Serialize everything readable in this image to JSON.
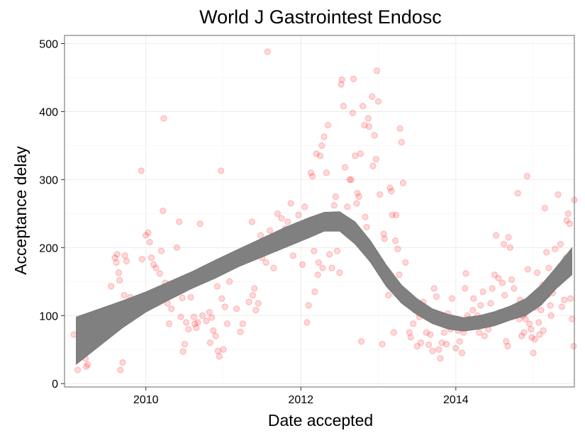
{
  "chart_data": {
    "type": "scatter",
    "title": "World J Gastrointest Endosc",
    "xlabel": "Date accepted",
    "ylabel": "Acceptance delay",
    "xlim": [
      2008.95,
      2015.53
    ],
    "ylim": [
      -5,
      512
    ],
    "x_ticks": [
      2010,
      2012,
      2014
    ],
    "x_tick_labels": [
      "2010",
      "2012",
      "2014"
    ],
    "y_ticks": [
      0,
      100,
      200,
      300,
      400,
      500
    ],
    "y_tick_labels": [
      "0",
      "100",
      "200",
      "300",
      "400",
      "500"
    ],
    "grid": true,
    "point_color": "#ff0000",
    "point_alpha": 0.15,
    "smooth_color": "#808080",
    "points": [
      [
        2009.07,
        72
      ],
      [
        2009.12,
        20
      ],
      [
        2009.15,
        58
      ],
      [
        2009.17,
        52
      ],
      [
        2009.2,
        80
      ],
      [
        2009.22,
        37
      ],
      [
        2009.23,
        25
      ],
      [
        2009.25,
        28
      ],
      [
        2009.55,
        143
      ],
      [
        2009.6,
        185
      ],
      [
        2009.62,
        178
      ],
      [
        2009.63,
        190
      ],
      [
        2009.65,
        163
      ],
      [
        2009.66,
        152
      ],
      [
        2009.66,
        108
      ],
      [
        2009.67,
        20
      ],
      [
        2009.68,
        90
      ],
      [
        2009.7,
        31
      ],
      [
        2009.72,
        130
      ],
      [
        2009.73,
        188
      ],
      [
        2009.75,
        180
      ],
      [
        2009.8,
        127
      ],
      [
        2009.94,
        313
      ],
      [
        2009.95,
        183
      ],
      [
        2010.0,
        218
      ],
      [
        2010.03,
        222
      ],
      [
        2010.05,
        208
      ],
      [
        2010.07,
        185
      ],
      [
        2010.1,
        175
      ],
      [
        2010.13,
        170
      ],
      [
        2010.18,
        162
      ],
      [
        2010.2,
        195
      ],
      [
        2010.22,
        254
      ],
      [
        2010.23,
        390
      ],
      [
        2010.25,
        148
      ],
      [
        2010.28,
        118
      ],
      [
        2010.3,
        88
      ],
      [
        2010.33,
        110
      ],
      [
        2010.4,
        200
      ],
      [
        2010.43,
        238
      ],
      [
        2010.45,
        98
      ],
      [
        2010.47,
        126
      ],
      [
        2010.48,
        47
      ],
      [
        2010.5,
        58
      ],
      [
        2010.52,
        90
      ],
      [
        2010.55,
        80
      ],
      [
        2010.58,
        127
      ],
      [
        2010.62,
        98
      ],
      [
        2010.63,
        88
      ],
      [
        2010.65,
        82
      ],
      [
        2010.67,
        90
      ],
      [
        2010.7,
        235
      ],
      [
        2010.73,
        100
      ],
      [
        2010.78,
        92
      ],
      [
        2010.82,
        105
      ],
      [
        2010.83,
        60
      ],
      [
        2010.85,
        97
      ],
      [
        2010.87,
        78
      ],
      [
        2010.9,
        70
      ],
      [
        2010.92,
        143
      ],
      [
        2010.93,
        48
      ],
      [
        2010.95,
        40
      ],
      [
        2010.97,
        313
      ],
      [
        2010.98,
        125
      ],
      [
        2011.0,
        50
      ],
      [
        2011.02,
        113
      ],
      [
        2011.05,
        88
      ],
      [
        2011.08,
        150
      ],
      [
        2011.17,
        110
      ],
      [
        2011.22,
        76
      ],
      [
        2011.25,
        88
      ],
      [
        2011.33,
        120
      ],
      [
        2011.37,
        238
      ],
      [
        2011.38,
        130
      ],
      [
        2011.4,
        140
      ],
      [
        2011.42,
        108
      ],
      [
        2011.45,
        118
      ],
      [
        2011.48,
        218
      ],
      [
        2011.5,
        185
      ],
      [
        2011.55,
        178
      ],
      [
        2011.57,
        488
      ],
      [
        2011.6,
        225
      ],
      [
        2011.65,
        170
      ],
      [
        2011.67,
        198
      ],
      [
        2011.7,
        250
      ],
      [
        2011.75,
        243
      ],
      [
        2011.8,
        228
      ],
      [
        2011.83,
        238
      ],
      [
        2011.87,
        265
      ],
      [
        2011.9,
        188
      ],
      [
        2011.93,
        228
      ],
      [
        2011.97,
        248
      ],
      [
        2012.02,
        175
      ],
      [
        2012.05,
        260
      ],
      [
        2012.08,
        90
      ],
      [
        2012.1,
        115
      ],
      [
        2012.13,
        310
      ],
      [
        2012.15,
        305
      ],
      [
        2012.17,
        195
      ],
      [
        2012.18,
        135
      ],
      [
        2012.2,
        338
      ],
      [
        2012.22,
        160
      ],
      [
        2012.23,
        178
      ],
      [
        2012.25,
        335
      ],
      [
        2012.27,
        350
      ],
      [
        2012.28,
        170
      ],
      [
        2012.3,
        363
      ],
      [
        2012.33,
        310
      ],
      [
        2012.35,
        380
      ],
      [
        2012.37,
        190
      ],
      [
        2012.4,
        170
      ],
      [
        2012.42,
        240
      ],
      [
        2012.43,
        262
      ],
      [
        2012.45,
        275
      ],
      [
        2012.47,
        195
      ],
      [
        2012.48,
        233
      ],
      [
        2012.5,
        163
      ],
      [
        2012.52,
        440
      ],
      [
        2012.53,
        447
      ],
      [
        2012.55,
        408
      ],
      [
        2012.57,
        318
      ],
      [
        2012.58,
        240
      ],
      [
        2012.6,
        260
      ],
      [
        2012.62,
        228
      ],
      [
        2012.63,
        300
      ],
      [
        2012.65,
        300
      ],
      [
        2012.67,
        398
      ],
      [
        2012.68,
        448
      ],
      [
        2012.7,
        335
      ],
      [
        2012.72,
        265
      ],
      [
        2012.73,
        280
      ],
      [
        2012.75,
        275
      ],
      [
        2012.77,
        338
      ],
      [
        2012.78,
        62
      ],
      [
        2012.8,
        408
      ],
      [
        2012.82,
        380
      ],
      [
        2012.83,
        245
      ],
      [
        2012.85,
        230
      ],
      [
        2012.87,
        390
      ],
      [
        2012.88,
        378
      ],
      [
        2012.9,
        200
      ],
      [
        2012.92,
        422
      ],
      [
        2012.93,
        320
      ],
      [
        2012.95,
        365
      ],
      [
        2012.97,
        330
      ],
      [
        2012.98,
        460
      ],
      [
        2013.0,
        415
      ],
      [
        2013.02,
        278
      ],
      [
        2013.03,
        180
      ],
      [
        2013.05,
        58
      ],
      [
        2013.07,
        220
      ],
      [
        2013.08,
        213
      ],
      [
        2013.1,
        160
      ],
      [
        2013.12,
        152
      ],
      [
        2013.13,
        130
      ],
      [
        2013.15,
        288
      ],
      [
        2013.17,
        283
      ],
      [
        2013.18,
        248
      ],
      [
        2013.2,
        75
      ],
      [
        2013.22,
        210
      ],
      [
        2013.23,
        248
      ],
      [
        2013.25,
        198
      ],
      [
        2013.27,
        160
      ],
      [
        2013.28,
        375
      ],
      [
        2013.3,
        355
      ],
      [
        2013.32,
        295
      ],
      [
        2013.35,
        178
      ],
      [
        2013.37,
        118
      ],
      [
        2013.4,
        75
      ],
      [
        2013.42,
        68
      ],
      [
        2013.45,
        88
      ],
      [
        2013.47,
        108
      ],
      [
        2013.5,
        55
      ],
      [
        2013.53,
        98
      ],
      [
        2013.55,
        60
      ],
      [
        2013.57,
        102
      ],
      [
        2013.58,
        120
      ],
      [
        2013.6,
        110
      ],
      [
        2013.62,
        75
      ],
      [
        2013.65,
        57
      ],
      [
        2013.67,
        72
      ],
      [
        2013.7,
        48
      ],
      [
        2013.72,
        140
      ],
      [
        2013.75,
        128
      ],
      [
        2013.78,
        50
      ],
      [
        2013.8,
        37
      ],
      [
        2013.82,
        60
      ],
      [
        2013.85,
        75
      ],
      [
        2013.88,
        58
      ],
      [
        2013.9,
        103
      ],
      [
        2013.93,
        80
      ],
      [
        2013.95,
        125
      ],
      [
        2013.97,
        95
      ],
      [
        2014.0,
        52
      ],
      [
        2014.03,
        78
      ],
      [
        2014.05,
        62
      ],
      [
        2014.08,
        45
      ],
      [
        2014.1,
        75
      ],
      [
        2014.12,
        140
      ],
      [
        2014.13,
        162
      ],
      [
        2014.15,
        100
      ],
      [
        2014.17,
        95
      ],
      [
        2014.2,
        88
      ],
      [
        2014.22,
        108
      ],
      [
        2014.23,
        125
      ],
      [
        2014.25,
        90
      ],
      [
        2014.28,
        100
      ],
      [
        2014.3,
        75
      ],
      [
        2014.32,
        115
      ],
      [
        2014.35,
        135
      ],
      [
        2014.37,
        70
      ],
      [
        2014.4,
        95
      ],
      [
        2014.42,
        80
      ],
      [
        2014.45,
        118
      ],
      [
        2014.47,
        140
      ],
      [
        2014.5,
        160
      ],
      [
        2014.52,
        218
      ],
      [
        2014.55,
        155
      ],
      [
        2014.57,
        105
      ],
      [
        2014.6,
        148
      ],
      [
        2014.62,
        205
      ],
      [
        2014.63,
        130
      ],
      [
        2014.65,
        62
      ],
      [
        2014.67,
        55
      ],
      [
        2014.68,
        215
      ],
      [
        2014.7,
        200
      ],
      [
        2014.72,
        153
      ],
      [
        2014.75,
        140
      ],
      [
        2014.77,
        108
      ],
      [
        2014.8,
        280
      ],
      [
        2014.82,
        95
      ],
      [
        2014.83,
        123
      ],
      [
        2014.85,
        70
      ],
      [
        2014.87,
        100
      ],
      [
        2014.88,
        75
      ],
      [
        2014.9,
        95
      ],
      [
        2014.92,
        305
      ],
      [
        2014.93,
        168
      ],
      [
        2014.95,
        88
      ],
      [
        2014.97,
        80
      ],
      [
        2014.98,
        68
      ],
      [
        2015.0,
        45
      ],
      [
        2015.02,
        65
      ],
      [
        2015.03,
        112
      ],
      [
        2015.05,
        163
      ],
      [
        2015.07,
        90
      ],
      [
        2015.08,
        72
      ],
      [
        2015.1,
        108
      ],
      [
        2015.12,
        145
      ],
      [
        2015.13,
        78
      ],
      [
        2015.15,
        258
      ],
      [
        2015.17,
        193
      ],
      [
        2015.18,
        130
      ],
      [
        2015.2,
        170
      ],
      [
        2015.22,
        115
      ],
      [
        2015.23,
        100
      ],
      [
        2015.25,
        133
      ],
      [
        2015.27,
        155
      ],
      [
        2015.28,
        198
      ],
      [
        2015.3,
        148
      ],
      [
        2015.32,
        278
      ],
      [
        2015.33,
        168
      ],
      [
        2015.35,
        205
      ],
      [
        2015.37,
        113
      ],
      [
        2015.38,
        162
      ],
      [
        2015.4,
        123
      ],
      [
        2015.42,
        185
      ],
      [
        2015.43,
        240
      ],
      [
        2015.45,
        250
      ],
      [
        2015.47,
        235
      ],
      [
        2015.48,
        125
      ],
      [
        2015.5,
        95
      ],
      [
        2015.52,
        55
      ],
      [
        2015.53,
        270
      ]
    ],
    "smooth": {
      "x": [
        2009.1,
        2009.4,
        2009.7,
        2010.0,
        2010.3,
        2010.6,
        2010.9,
        2011.2,
        2011.5,
        2011.8,
        2012.1,
        2012.3,
        2012.5,
        2012.7,
        2012.9,
        2013.1,
        2013.3,
        2013.5,
        2013.7,
        2013.9,
        2014.1,
        2014.3,
        2014.5,
        2014.7,
        2014.9,
        2015.1,
        2015.3,
        2015.5
      ],
      "lower": [
        28,
        55,
        82,
        105,
        123,
        140,
        155,
        172,
        186,
        200,
        214,
        224,
        224,
        205,
        178,
        143,
        118,
        101,
        88,
        80,
        77,
        80,
        85,
        93,
        100,
        115,
        140,
        160
      ],
      "upper": [
        98,
        110,
        122,
        135,
        150,
        165,
        182,
        198,
        214,
        230,
        244,
        252,
        253,
        238,
        210,
        175,
        145,
        125,
        110,
        102,
        97,
        100,
        106,
        114,
        125,
        145,
        172,
        200
      ]
    }
  }
}
